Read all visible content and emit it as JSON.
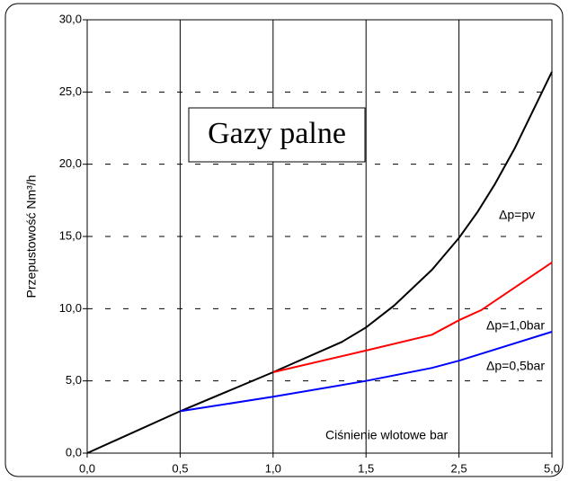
{
  "chart_data": {
    "type": "line",
    "title": "Gazy palne",
    "y_label": "Przepustowość Nm³/h",
    "x_label": "Ciśnienie wlotowe bar",
    "xlim": [
      0,
      5
    ],
    "xticks": [
      {
        "value": 0,
        "label": "0,0"
      },
      {
        "value": 0.5,
        "label": "0,5"
      },
      {
        "value": 1,
        "label": "1,0"
      },
      {
        "value": 1.5,
        "label": "1,5"
      },
      {
        "value": 2.5,
        "label": "2,5"
      },
      {
        "value": 5,
        "label": "5,0"
      }
    ],
    "ylim": [
      0,
      30
    ],
    "yticks": [
      {
        "value": 0,
        "label": "0,0"
      },
      {
        "value": 5,
        "label": "5,0"
      },
      {
        "value": 10,
        "label": "10,0"
      },
      {
        "value": 15,
        "label": "15,0"
      },
      {
        "value": 20,
        "label": "20,0"
      },
      {
        "value": 25,
        "label": "25,0"
      },
      {
        "value": 30,
        "label": "30,0"
      }
    ],
    "grid": true,
    "series": [
      {
        "name": "Δp=pv",
        "color": "#000000",
        "x": [
          0,
          0.5,
          1.0,
          1.37,
          1.5,
          1.8,
          2.21,
          2.5,
          3.0,
          3.46,
          4.0,
          5.0
        ],
        "values": [
          0,
          2.9,
          5.6,
          7.7,
          8.7,
          10.2,
          12.7,
          14.9,
          16.7,
          18.6,
          21.1,
          26.4
        ]
      },
      {
        "name": "Δp=1,0bar",
        "color": "#ff0000",
        "x": [
          1.0,
          1.5,
          2.21,
          2.5,
          3.1,
          5.0
        ],
        "values": [
          5.6,
          7.1,
          8.2,
          9.2,
          9.9,
          13.2
        ]
      },
      {
        "name": "Δp=0,5bar",
        "color": "#0000ff",
        "x": [
          0.5,
          1.0,
          1.5,
          2.21,
          2.5,
          5.0
        ],
        "values": [
          2.9,
          3.9,
          5.0,
          5.9,
          6.4,
          8.4
        ]
      }
    ]
  }
}
